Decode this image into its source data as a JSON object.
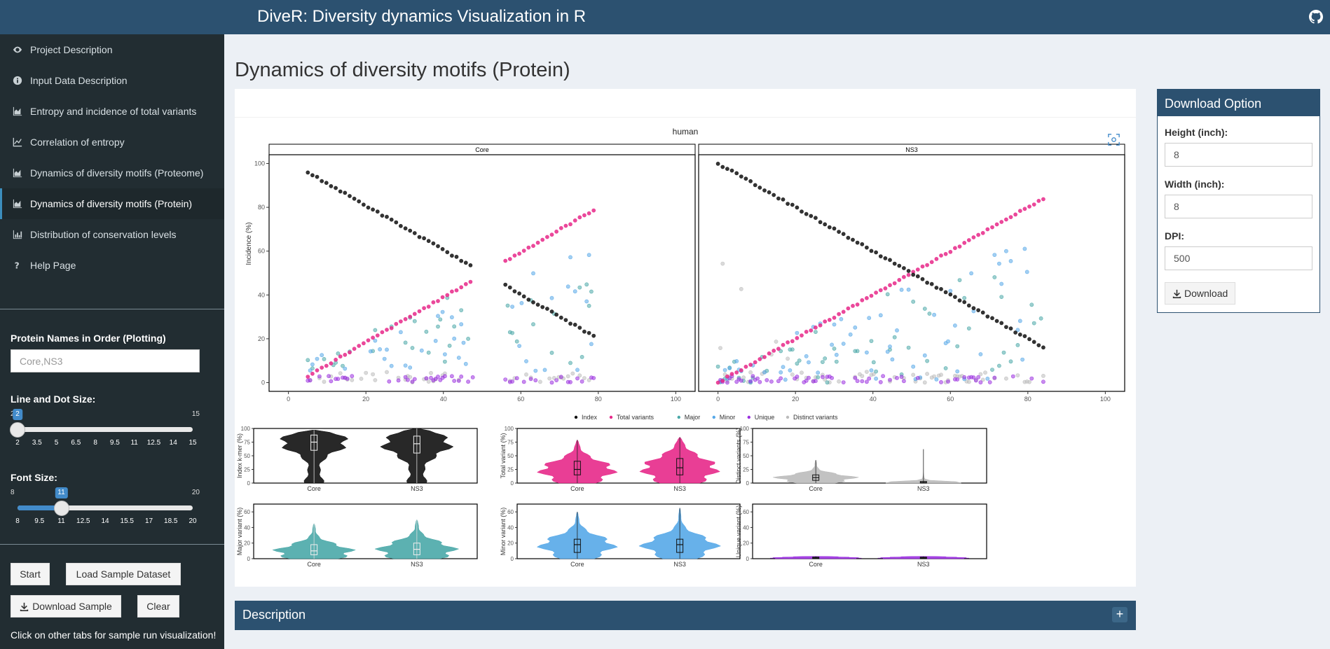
{
  "app": {
    "title": "DiveR: Diversity dynamics Visualization in R",
    "github_icon": "github-icon"
  },
  "sidebar": {
    "items": [
      {
        "label": "Project Description",
        "icon": "eye-icon",
        "active": false
      },
      {
        "label": "Input Data Description",
        "icon": "info-icon",
        "active": false
      },
      {
        "label": "Entropy and incidence of total variants",
        "icon": "area-chart-icon",
        "active": false
      },
      {
        "label": "Correlation of entropy",
        "icon": "line-chart-icon",
        "active": false
      },
      {
        "label": "Dynamics of diversity motifs (Proteome)",
        "icon": "area-chart-icon",
        "active": false
      },
      {
        "label": "Dynamics of diversity motifs (Protein)",
        "icon": "area-chart-icon",
        "active": true
      },
      {
        "label": "Distribution of conservation levels",
        "icon": "bar-chart-icon",
        "active": false
      },
      {
        "label": "Help Page",
        "icon": "question-icon",
        "active": false
      }
    ],
    "protein_names": {
      "label": "Protein Names in Order (Plotting)",
      "placeholder": "Core,NS3",
      "value": ""
    },
    "line_dot_size": {
      "label": "Line and Dot Size:",
      "min": 2,
      "max": 15,
      "value": 2,
      "ticks": [
        "2",
        "3.5",
        "5",
        "6.5",
        "8",
        "9.5",
        "11",
        "12.5",
        "14",
        "15"
      ]
    },
    "font_size": {
      "label": "Font Size:",
      "min": 8,
      "max": 20,
      "value": 11,
      "ticks": [
        "8",
        "9.5",
        "11",
        "12.5",
        "14",
        "15.5",
        "17",
        "18.5",
        "20"
      ]
    },
    "buttons": {
      "start": "Start",
      "load_sample": "Load Sample Dataset",
      "download_sample": "Download Sample",
      "clear": "Clear"
    },
    "note": "Click on other tabs for sample run visualization!"
  },
  "main": {
    "page_title": "Dynamics of diversity motifs (Protein)",
    "description_title": "Description",
    "description_toggle": "+"
  },
  "download": {
    "title": "Download Option",
    "height_label": "Height (inch):",
    "height_value": "8",
    "width_label": "Width (inch):",
    "width_value": "8",
    "dpi_label": "DPI:",
    "dpi_value": "500",
    "button_label": "Download"
  },
  "chart_data": [
    {
      "type": "scatter",
      "title": "human",
      "ylabel": "Incidence (%)",
      "xlim": [
        -5,
        105
      ],
      "ylim": [
        -4,
        104
      ],
      "xticks": [
        0,
        20,
        40,
        60,
        80,
        100
      ],
      "yticks": [
        0,
        20,
        40,
        60,
        80,
        100
      ],
      "legend": {
        "position": "bottom",
        "entries": [
          "Index",
          "Total variants",
          "Major",
          "Minor",
          "Unique",
          "Distinct variants"
        ]
      },
      "series_colors": {
        "Index": "#111111",
        "Total variants": "#e7298a",
        "Major": "#4aa8a8",
        "Minor": "#56a8e8",
        "Unique": "#9b30e0",
        "Distinct variants": "#bbbbbb"
      },
      "panels": [
        {
          "name": "Core",
          "segments": [
            [
              5,
              48
            ],
            [
              56,
              79
            ]
          ],
          "series": {
            "Index": {
              "start": 96,
              "end": 21
            },
            "Total variants": {
              "start": 3,
              "end": 79
            },
            "Major": {
              "range": [
                5,
                45
              ]
            },
            "Minor": {
              "range": [
                5,
                60
              ]
            },
            "Unique": {
              "range": [
                0,
                3
              ]
            },
            "Distinct variants": {
              "range": [
                1,
                42
              ]
            }
          }
        },
        {
          "name": "NS3",
          "segments": [
            [
              0,
              84
            ]
          ],
          "series": {
            "Index": {
              "start": 100,
              "end": 16
            },
            "Total variants": {
              "start": 0,
              "end": 84
            },
            "Major": {
              "range": [
                0,
                50
              ]
            },
            "Minor": {
              "range": [
                0,
                65
              ]
            },
            "Unique": {
              "range": [
                0,
                3
              ]
            },
            "Distinct variants": {
              "range": [
                0,
                62
              ]
            }
          }
        }
      ]
    },
    {
      "type": "violin",
      "categories": [
        "Core",
        "NS3"
      ],
      "yticks": [
        0,
        25,
        50,
        75,
        100
      ],
      "ylim": [
        0,
        100
      ],
      "panels": [
        {
          "ylabel": "Index k-mer (%)",
          "color": "#111111",
          "median": [
            75,
            72
          ],
          "q1": [
            60,
            55
          ],
          "q3": [
            88,
            86
          ],
          "max": [
            97,
            100
          ]
        },
        {
          "ylabel": "Total variant (%)",
          "color": "#e7298a",
          "median": [
            25,
            28
          ],
          "q1": [
            15,
            15
          ],
          "q3": [
            40,
            45
          ],
          "max": [
            79,
            84
          ]
        },
        {
          "ylabel": "Distinct variants (%)",
          "color": "#bbbbbb",
          "median": [
            10,
            1
          ],
          "q1": [
            5,
            0
          ],
          "q3": [
            15,
            3
          ],
          "max": [
            42,
            62
          ]
        }
      ]
    },
    {
      "type": "violin",
      "categories": [
        "Core",
        "NS3"
      ],
      "yticks": [
        0,
        20,
        40,
        60
      ],
      "ylim": [
        0,
        70
      ],
      "panels": [
        {
          "ylabel": "Major variant (%)",
          "color": "#4aa8a8",
          "median": [
            10,
            12
          ],
          "q1": [
            5,
            5
          ],
          "q3": [
            18,
            20
          ],
          "max": [
            45,
            50
          ]
        },
        {
          "ylabel": "Minor variant (%)",
          "color": "#56a8e8",
          "median": [
            18,
            18
          ],
          "q1": [
            8,
            8
          ],
          "q3": [
            25,
            25
          ],
          "max": [
            60,
            65
          ]
        },
        {
          "ylabel": "Unique variant (%)",
          "color": "#9b30e0",
          "median": [
            1,
            1
          ],
          "q1": [
            0,
            0
          ],
          "q3": [
            2,
            2
          ],
          "max": [
            3,
            3
          ]
        }
      ]
    }
  ]
}
